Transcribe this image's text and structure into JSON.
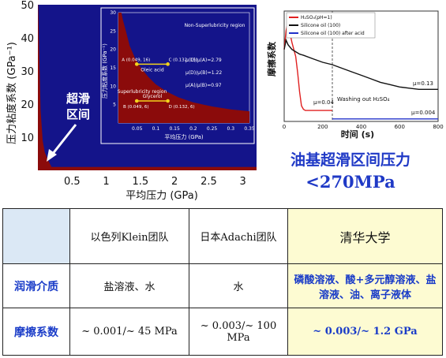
{
  "colors": {
    "navy": "#14148a",
    "darkred": "#8b0b0b",
    "accent_blue": "#1a3cc8",
    "highlight": "#fdfbd2",
    "header_bg": "#dbe8f5"
  },
  "chart_data": [
    {
      "type": "area",
      "title": "",
      "xlabel": "平均压力 (GPa)",
      "ylabel": "压力粘度系数 (GPa⁻¹)",
      "xlim": [
        0,
        3.2
      ],
      "ylim": [
        0,
        50
      ],
      "xticks": [
        "0.5",
        "1",
        "1.5",
        "2",
        "2.5",
        "3"
      ],
      "yticks": [
        "10",
        "20",
        "30",
        "40",
        "50"
      ],
      "annotation": "超滑区间",
      "boundary": {
        "x": [
          0.005,
          0.02,
          0.04,
          0.07,
          0.1,
          0.13,
          0.15,
          0.2,
          3.2
        ],
        "y": [
          50,
          35,
          18,
          9,
          5.5,
          4,
          3,
          1,
          1
        ]
      },
      "inset": {
        "type": "scatter",
        "xlabel": "平均压力 (GPa)",
        "ylabel": "压力粘度系数 (GPa⁻¹)",
        "xlim": [
          0,
          0.35
        ],
        "ylim": [
          0,
          30
        ],
        "xticks": [
          "0.05",
          "0.1",
          "0.15",
          "0.2",
          "0.25",
          "0.3",
          "0.35"
        ],
        "yticks": [
          "5",
          "10",
          "15",
          "20",
          "25",
          "30"
        ],
        "region_labels": [
          "Non-Superlubricity region",
          "Superlubricity region"
        ],
        "boundary": {
          "x": [
            0.008,
            0.012,
            0.02,
            0.03,
            0.045,
            0.06,
            0.08,
            0.1,
            0.13,
            0.16,
            0.2,
            0.25,
            0.3,
            0.35
          ],
          "y": [
            30,
            28,
            25,
            21,
            17.5,
            15,
            12.5,
            10.5,
            8.5,
            7,
            5.6,
            4.5,
            3.7,
            3.2
          ]
        },
        "points": [
          {
            "name": "A",
            "label": "A (0.049, 16)",
            "x": 0.049,
            "y": 16
          },
          {
            "name": "C",
            "label": "C (0.132, 16)",
            "x": 0.132,
            "y": 16
          },
          {
            "name": "B",
            "label": "B (0.049, 6)",
            "x": 0.049,
            "y": 6
          },
          {
            "name": "D",
            "label": "D (0.132, 6)",
            "x": 0.132,
            "y": 6
          }
        ],
        "line_labels": [
          "Oleic acid",
          "Glycerol"
        ],
        "equations": [
          "μ(C)/μ(A)=2.79",
          "μ(D)/μ(B)=1.22",
          "μ(A)/μ(B)=0.97"
        ]
      }
    },
    {
      "type": "line",
      "title": "",
      "xlabel": "时间 (s)",
      "ylabel": "摩擦系数",
      "xlim": [
        0,
        800
      ],
      "xticks": [
        "0",
        "200",
        "400",
        "600",
        "800"
      ],
      "legend_position": "top-left",
      "series": [
        {
          "name": "H₂SO₄(pH=1)",
          "color": "#e02020",
          "x": [
            0,
            10,
            20,
            30,
            40,
            50,
            60,
            70,
            80,
            90,
            100,
            110,
            120,
            140,
            160,
            180,
            200,
            220,
            240,
            250
          ],
          "y": [
            0.3,
            0.38,
            0.42,
            0.37,
            0.33,
            0.3,
            0.27,
            0.2,
            0.12,
            0.06,
            0.045,
            0.04,
            0.04,
            0.04,
            0.04,
            0.04,
            0.04,
            0.04,
            0.04,
            0.04
          ]
        },
        {
          "name": "Silicone oil (100)",
          "color": "#111111",
          "x": [
            0,
            10,
            20,
            40,
            60,
            80,
            100,
            150,
            200,
            250,
            300,
            350,
            400,
            450,
            500,
            550,
            600,
            650,
            700,
            750,
            800
          ],
          "y": [
            0.3,
            0.34,
            0.32,
            0.3,
            0.29,
            0.28,
            0.275,
            0.26,
            0.245,
            0.235,
            0.22,
            0.205,
            0.19,
            0.175,
            0.16,
            0.15,
            0.14,
            0.135,
            0.13,
            0.13,
            0.13
          ]
        },
        {
          "name": "Silicone oil (100) after acid",
          "color": "#2030c8",
          "x": [
            250,
            300,
            400,
            500,
            600,
            700,
            800
          ],
          "y": [
            0.004,
            0.004,
            0.004,
            0.004,
            0.004,
            0.004,
            0.004
          ]
        }
      ],
      "annotations": [
        "μ=0.04",
        "μ=0.13",
        "Washing out H₂SO₄",
        "μ=0.004"
      ]
    }
  ],
  "caption": {
    "line1": "油基超滑区间压力",
    "line2": "<270MPa"
  },
  "table": {
    "headers": [
      "",
      "以色列Klein团队",
      "日本Adachi团队",
      "清华大学"
    ],
    "rows": [
      {
        "label": "润滑介质",
        "cells": [
          "盐溶液、水",
          "水",
          "磷酸溶液、酸+多元醇溶液、盐溶液、油、离子液体"
        ]
      },
      {
        "label": "摩擦系数",
        "cells": [
          "~ 0.001/~ 45 MPa",
          "~ 0.003/~ 100 MPa",
          "~ 0.003/~ 1.2 GPa"
        ]
      }
    ]
  }
}
